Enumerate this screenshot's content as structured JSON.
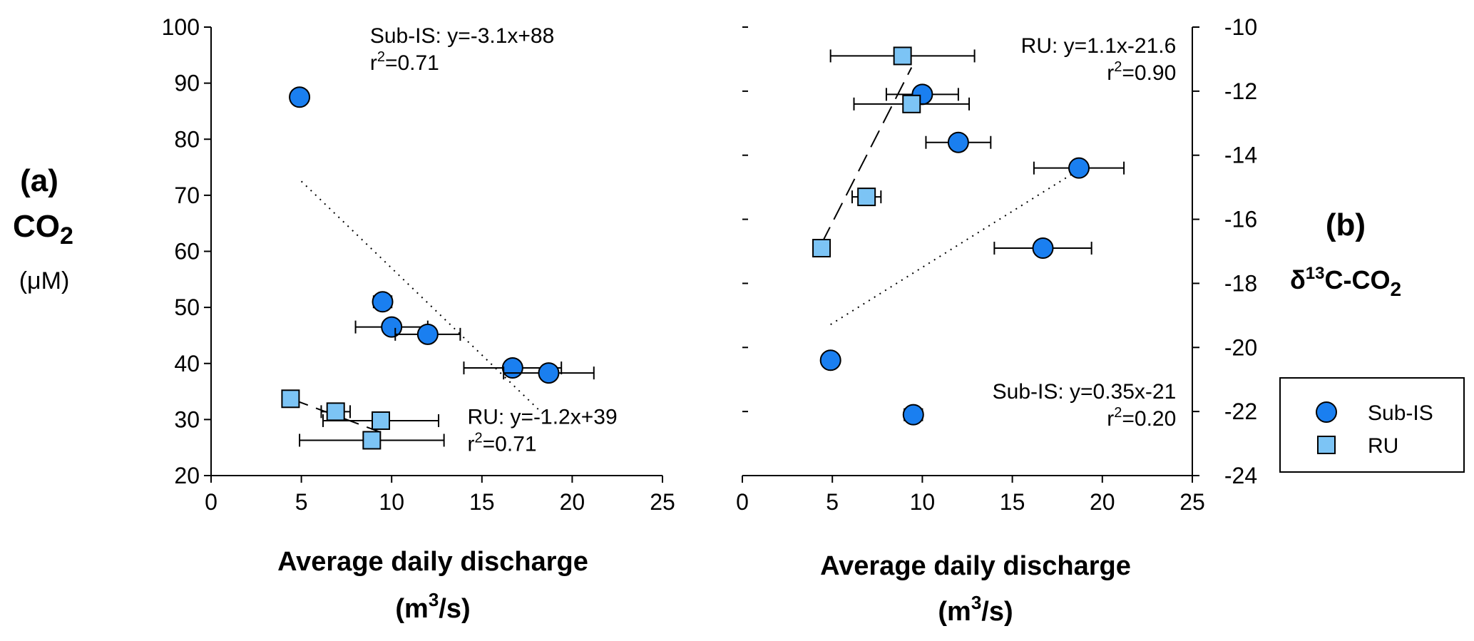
{
  "colors": {
    "sub_is": "#1a7ff0",
    "ru": "#7cc4f5",
    "stroke": "#000000"
  },
  "legend": [
    {
      "key": "sub_is",
      "label": "Sub-IS",
      "marker": "circle"
    },
    {
      "key": "ru",
      "label": "RU",
      "marker": "square"
    }
  ],
  "panel_a": {
    "letter": "(a)",
    "ylabel_main": "CO",
    "ylabel_sub": "2",
    "ylabel_unit": "(μM)",
    "xlabel_line1": "Average daily discharge",
    "xlabel_line2_pre": "(m",
    "xlabel_line2_sup": "3",
    "xlabel_line2_post": "/s)"
  },
  "panel_b": {
    "letter": "(b)",
    "ylabel_delta": "δ",
    "ylabel_sup": "13",
    "ylabel_main": "C-CO",
    "ylabel_sub": "2",
    "xlabel_line1": "Average daily discharge",
    "xlabel_line2_pre": "(m",
    "xlabel_line2_sup": "3",
    "xlabel_line2_post": "/s)"
  },
  "chart_data": [
    {
      "type": "scatter",
      "id": "a",
      "title": "",
      "xlabel": "Average daily discharge (m3/s)",
      "ylabel": "CO2 (μM)",
      "xlim": [
        0,
        25
      ],
      "ylim": [
        20,
        100
      ],
      "xticks": [
        0,
        5,
        10,
        15,
        20,
        25
      ],
      "yticks": [
        20,
        30,
        40,
        50,
        60,
        70,
        80,
        90,
        100
      ],
      "ytick_side": "left",
      "series": [
        {
          "name": "Sub-IS",
          "key": "sub_is",
          "marker": "circle",
          "points": [
            {
              "x": 4.9,
              "y": 87.5
            },
            {
              "x": 9.5,
              "y": 51.0,
              "xerr": 0.5
            },
            {
              "x": 10.0,
              "y": 46.5,
              "xerr": 2.0
            },
            {
              "x": 12.0,
              "y": 45.2,
              "xerr": 1.8
            },
            {
              "x": 16.7,
              "y": 39.2,
              "xerr": 2.7
            },
            {
              "x": 18.7,
              "y": 38.3,
              "xerr": 2.5
            }
          ],
          "fit": {
            "style": "dotted",
            "slope": -3.1,
            "intercept": 88,
            "x_range": [
              5.0,
              18.5
            ]
          }
        },
        {
          "name": "RU",
          "key": "ru",
          "marker": "square",
          "points": [
            {
              "x": 4.4,
              "y": 33.7
            },
            {
              "x": 6.9,
              "y": 31.4,
              "xerr": 0.8
            },
            {
              "x": 9.4,
              "y": 29.8,
              "xerr": 3.2
            },
            {
              "x": 8.9,
              "y": 26.3,
              "xerr": 4.0
            }
          ],
          "fit": {
            "style": "dashed",
            "slope": -1.2,
            "intercept": 39,
            "x_range": [
              4.4,
              9.4
            ]
          }
        }
      ],
      "annotations": [
        {
          "line1": "Sub-IS: y=-3.1x+88",
          "r2_value": "0.71",
          "x": 8.8,
          "y": 97.2,
          "anchor": "start"
        },
        {
          "line1": "RU: y=-1.2x+39",
          "r2_value": "0.71",
          "x": 14.2,
          "y": 29.2,
          "anchor": "start"
        }
      ]
    },
    {
      "type": "scatter",
      "id": "b",
      "title": "",
      "xlabel": "Average daily discharge (m3/s)",
      "ylabel": "δ13C-CO2",
      "xlim": [
        0,
        25
      ],
      "ylim": [
        -24,
        -10
      ],
      "xticks": [
        0,
        5,
        10,
        15,
        20,
        25
      ],
      "yticks": [
        -24,
        -22,
        -20,
        -18,
        -16,
        -14,
        -12,
        -10
      ],
      "ytick_side": "right",
      "series": [
        {
          "name": "Sub-IS",
          "key": "sub_is",
          "marker": "circle",
          "points": [
            {
              "x": 10.0,
              "y": -12.1,
              "xerr": 2.0
            },
            {
              "x": 12.0,
              "y": -13.6,
              "xerr": 1.8
            },
            {
              "x": 18.7,
              "y": -14.4,
              "xerr": 2.5
            },
            {
              "x": 16.7,
              "y": -16.9,
              "xerr": 2.7
            },
            {
              "x": 4.9,
              "y": -20.4
            },
            {
              "x": 9.5,
              "y": -22.1,
              "xerr": 0.5
            }
          ],
          "fit": {
            "style": "dotted",
            "slope": 0.35,
            "intercept": -21,
            "x_range": [
              4.9,
              18.7
            ]
          }
        },
        {
          "name": "RU",
          "key": "ru",
          "marker": "square",
          "points": [
            {
              "x": 8.9,
              "y": -10.9,
              "xerr": 4.0
            },
            {
              "x": 9.4,
              "y": -12.4,
              "xerr": 3.2
            },
            {
              "x": 6.9,
              "y": -15.3,
              "xerr": 0.8
            },
            {
              "x": 4.4,
              "y": -16.9
            }
          ],
          "fit": {
            "style": "dashed",
            "slope": 1.1,
            "intercept": -21.6,
            "x_range": [
              4.4,
              9.4
            ]
          }
        }
      ],
      "annotations": [
        {
          "line1": "RU: y=1.1x-21.6",
          "r2_value": "0.90",
          "x": 24.1,
          "y": -10.8,
          "anchor": "end"
        },
        {
          "line1": "Sub-IS: y=0.35x-21",
          "r2_value": "0.20",
          "x": 24.1,
          "y": -21.6,
          "anchor": "end"
        }
      ]
    }
  ]
}
